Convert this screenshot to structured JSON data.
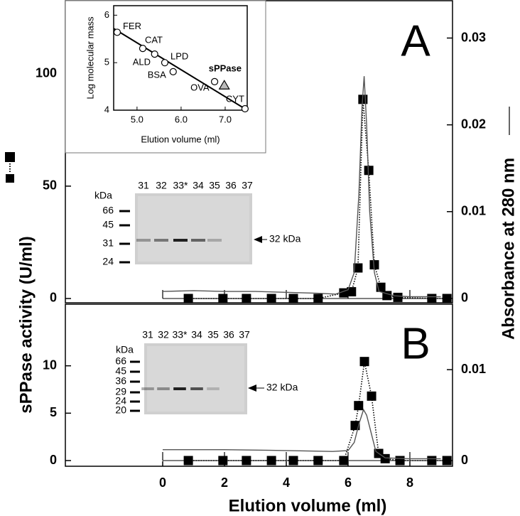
{
  "chart_data": [
    {
      "type": "line",
      "title": "A",
      "ylabel": "sPPase activity (U/ml)",
      "y2label": "Absorbance at 280 nm",
      "xlim": [
        -3.15,
        9.38
      ],
      "xticks": [
        0,
        2,
        4,
        6,
        8
      ],
      "ylim": [
        -1.9,
        132.5
      ],
      "yticks": [
        0,
        50,
        100
      ],
      "y2lim": [
        -0.0005,
        0.0343
      ],
      "y2ticks": [
        0,
        0.01,
        0.02,
        0.03
      ],
      "series": [
        {
          "axis": "y",
          "marker": "square",
          "line": "dotted",
          "color": "#000000",
          "x": [
            0.83,
            1.95,
            2.71,
            3.52,
            4.23,
            5.03,
            5.86,
            6.11,
            6.32,
            6.48,
            6.67,
            6.85,
            7.06,
            7.26,
            7.61,
            8.71,
            9.2
          ],
          "values": [
            0,
            0,
            0,
            0,
            0,
            0,
            2.5,
            3,
            13.6,
            88.6,
            57,
            15,
            5,
            1.3,
            0.5,
            0,
            0
          ]
        },
        {
          "axis": "y2",
          "line": "solid",
          "color": "#555555",
          "x": [
            0,
            1,
            2,
            3,
            4,
            5,
            5.6,
            6.0,
            6.2,
            6.35,
            6.45,
            6.52,
            6.6,
            6.7,
            6.85,
            7.0,
            7.5,
            8,
            9
          ],
          "values": [
            0.0008,
            0.0009,
            0.0008,
            0.0008,
            0.0007,
            0.0006,
            0.0005,
            0.001,
            0.003,
            0.012,
            0.022,
            0.0256,
            0.02,
            0.01,
            0.003,
            0.0008,
            0.0003,
            0.0002,
            0.0002
          ]
        }
      ],
      "gel": {
        "unit": "kDa",
        "lanes": [
          "31",
          "32",
          "33*",
          "34",
          "35",
          "36",
          "37"
        ],
        "markers": [
          "66",
          "45",
          "31",
          "24"
        ],
        "band": "32 kDa"
      }
    },
    {
      "type": "line",
      "title": "B",
      "xlabel": "Elution volume (ml)",
      "xlim": [
        -3.15,
        9.38
      ],
      "xticks": [
        0,
        2,
        4,
        6,
        8
      ],
      "ylim": [
        -0.6,
        16.5
      ],
      "yticks": [
        0,
        5,
        10
      ],
      "y2lim": [
        -0.000625,
        0.0172
      ],
      "y2ticks": [
        0,
        0.01
      ],
      "series": [
        {
          "axis": "y",
          "marker": "square",
          "line": "dotted",
          "color": "#000000",
          "x": [
            0.83,
            1.95,
            2.71,
            3.52,
            4.23,
            5.03,
            5.86,
            6.23,
            6.34,
            6.53,
            6.76,
            6.99,
            7.2,
            7.68,
            8.71,
            9.2
          ],
          "values": [
            0,
            0,
            0,
            0,
            0,
            0,
            0,
            3.7,
            5.8,
            10.45,
            6.8,
            0.75,
            0.2,
            0,
            0,
            0
          ]
        },
        {
          "axis": "y2",
          "line": "solid",
          "color": "#555555",
          "x": [
            0,
            2,
            4,
            5.5,
            6.0,
            6.2,
            6.35,
            6.5,
            6.6,
            6.75,
            6.9,
            7.2,
            8,
            9
          ],
          "values": [
            0.0012,
            0.0012,
            0.0011,
            0.001,
            0.0011,
            0.002,
            0.004,
            0.0056,
            0.005,
            0.003,
            0.001,
            0.0003,
            0.0002,
            0.0002
          ]
        }
      ],
      "gel": {
        "unit": "kDa",
        "lanes": [
          "31",
          "32",
          "33*",
          "34",
          "35",
          "36",
          "37"
        ],
        "markers": [
          "66",
          "45",
          "36",
          "29",
          "24",
          "20"
        ],
        "band": "32 kDa"
      }
    },
    {
      "type": "scatter",
      "xlabel": "Elution volume (ml)",
      "ylabel": "Log molecular mass",
      "xlim": [
        4.47,
        7.5
      ],
      "xticks": [
        {
          "value": 5,
          "label": "5.0"
        },
        {
          "value": 6,
          "label": "6.0"
        },
        {
          "value": 7,
          "label": "7.0"
        }
      ],
      "ylim": [
        4,
        6.2
      ],
      "yticks": [
        4,
        5,
        6
      ],
      "points": {
        "x": [
          4.55,
          5.13,
          5.4,
          5.63,
          5.82,
          6.76,
          6.98,
          7.45
        ],
        "y": [
          5.64,
          5.3,
          5.18,
          5.0,
          4.81,
          4.6,
          4.52,
          4.03
        ],
        "labels": [
          "FER",
          "CAT",
          "ALD",
          "LPD",
          "BSA",
          "OVA",
          "sPPase",
          "CYT"
        ],
        "marker": [
          "circle",
          "circle",
          "circle",
          "circle",
          "circle",
          "circle",
          "triangle",
          "circle"
        ]
      },
      "fit": {
        "x": [
          4.47,
          7.5
        ],
        "y": [
          5.72,
          4.0
        ]
      }
    }
  ]
}
